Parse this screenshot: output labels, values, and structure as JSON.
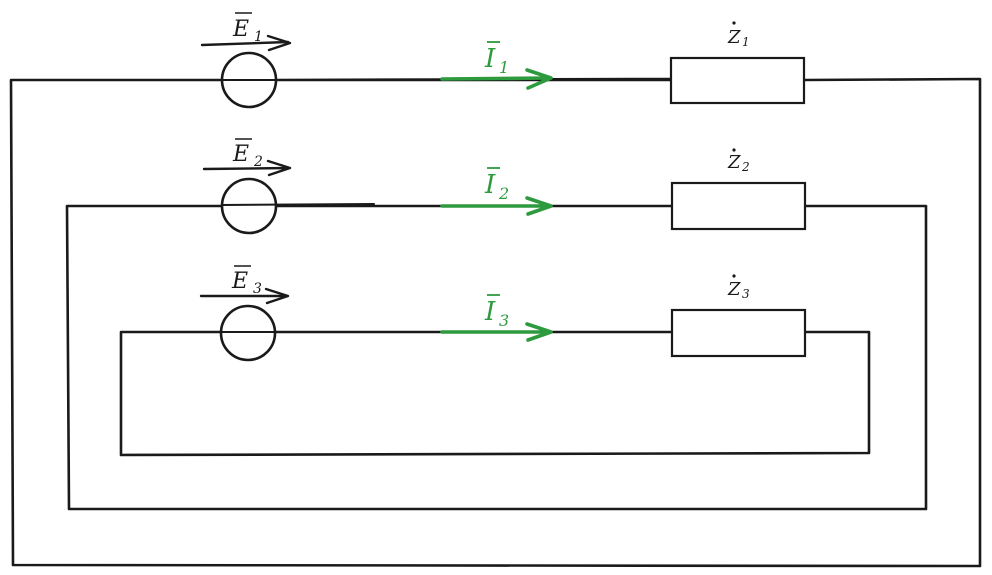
{
  "diagram": {
    "type": "circuit",
    "colors": {
      "wire": "#1a1a1a",
      "current": "#2e9a3e"
    },
    "branches": [
      {
        "emf": {
          "symbol": "E",
          "index": "1"
        },
        "current": {
          "symbol": "I",
          "index": "1"
        },
        "impedance": {
          "symbol": "Z",
          "index": "1"
        }
      },
      {
        "emf": {
          "symbol": "E",
          "index": "2"
        },
        "current": {
          "symbol": "I",
          "index": "2"
        },
        "impedance": {
          "symbol": "Z",
          "index": "2"
        }
      },
      {
        "emf": {
          "symbol": "E",
          "index": "3"
        },
        "current": {
          "symbol": "I",
          "index": "3"
        },
        "impedance": {
          "symbol": "Z",
          "index": "3"
        }
      }
    ]
  }
}
